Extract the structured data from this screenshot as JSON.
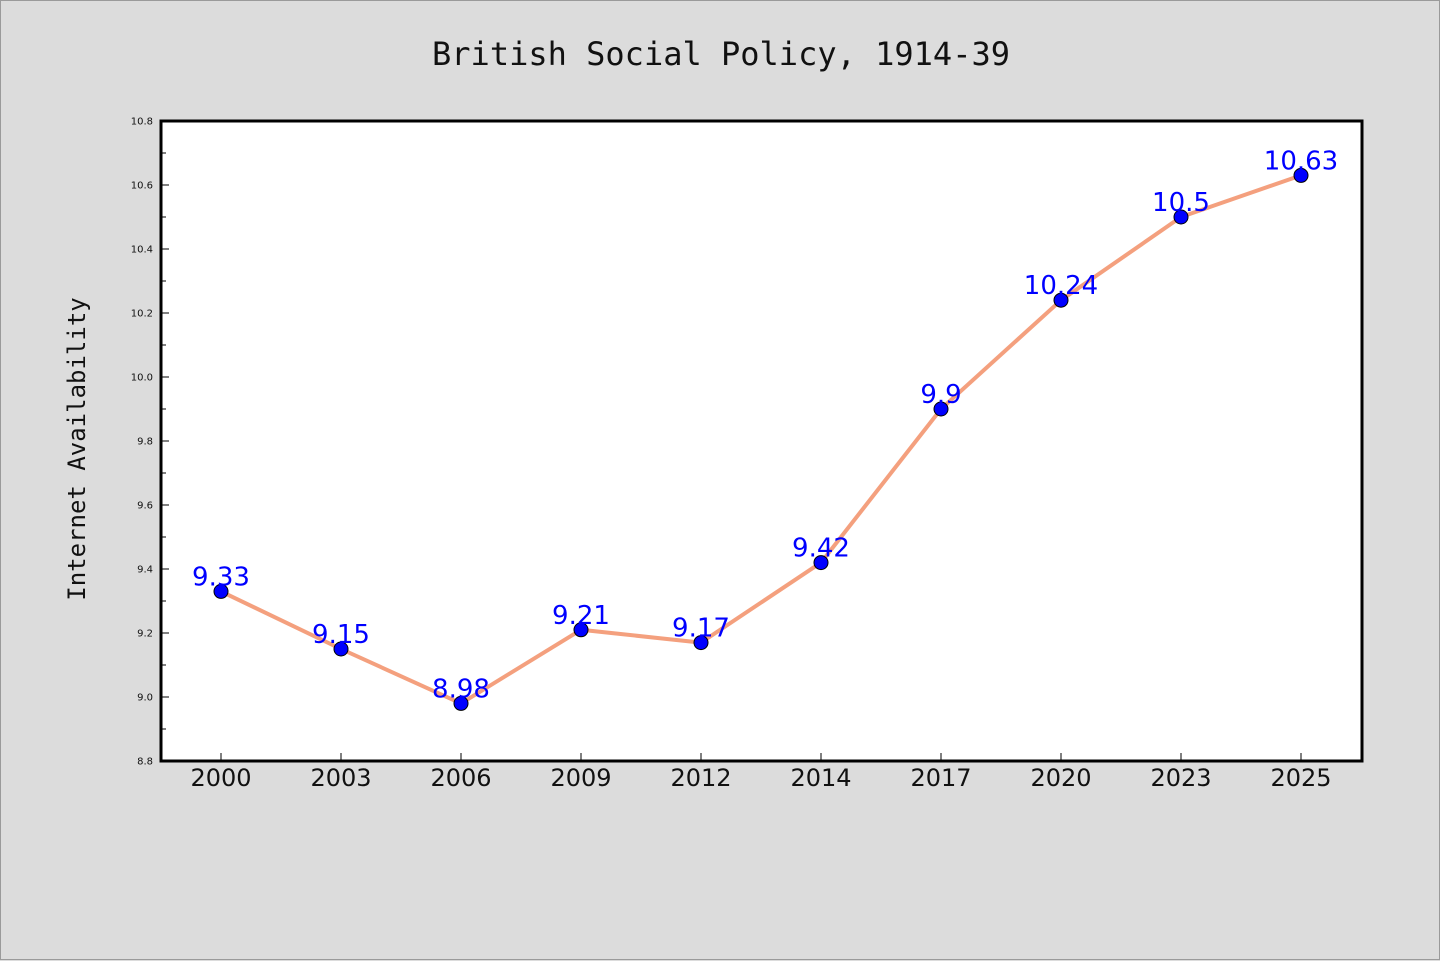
{
  "chart_data": {
    "type": "line",
    "title": "British Social Policy, 1914-39",
    "xlabel": "",
    "ylabel": "Internet Availability",
    "categories": [
      "2000",
      "2003",
      "2006",
      "2009",
      "2012",
      "2014",
      "2017",
      "2020",
      "2023",
      "2025"
    ],
    "values": [
      9.33,
      9.15,
      8.98,
      9.21,
      9.17,
      9.42,
      9.9,
      10.24,
      10.5,
      10.63
    ],
    "data_labels": [
      "9.33",
      "9.15",
      "8.98",
      "9.21",
      "9.17",
      "9.42",
      "9.9",
      "10.24",
      "10.5",
      "10.63"
    ],
    "ylim": [
      8.8,
      10.8
    ],
    "yticks": [
      "8.8",
      "9.0",
      "9.2",
      "9.4",
      "9.6",
      "9.8",
      "10.0",
      "10.2",
      "10.4",
      "10.6",
      "10.8"
    ],
    "grid": false,
    "legend": "none",
    "colors": {
      "line": "#f4a07e",
      "marker": "#0000ff",
      "label": "#0000ff",
      "background": "#dcdcdc",
      "plot_area": "#ffffff"
    }
  }
}
